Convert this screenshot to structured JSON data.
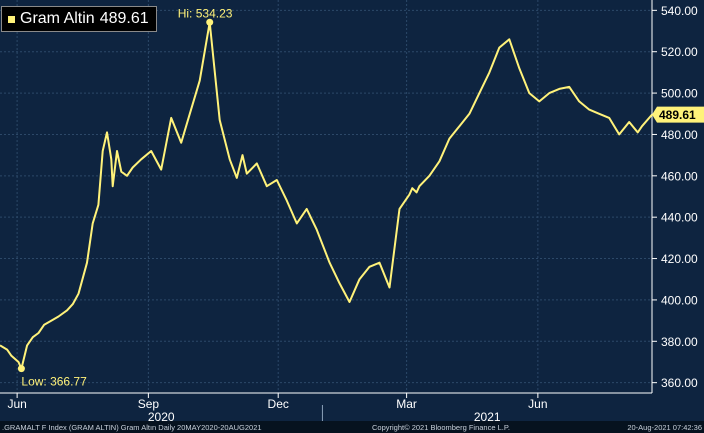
{
  "legend": {
    "name": "Gram Altin",
    "value": "489.61"
  },
  "footer": {
    "left": ".GRAMALT F Index (GRAM ALTIN) Gram Altın  Daily 20MAY2020-20AUG2021",
    "center": "Copyright© 2021 Bloomberg Finance L.P.",
    "right": "20-Aug-2021 07:42:36"
  },
  "colors": {
    "background": "#0e2440",
    "line": "#fff27a",
    "grid": "#2c4868",
    "text": "#ffffff",
    "price_tag_bg": "#fff27a"
  },
  "chart_data": {
    "type": "line",
    "series": [
      {
        "name": "Gram Altin",
        "x": [
          "2020-05-20",
          "2020-05-25",
          "2020-05-28",
          "2020-06-02",
          "2020-06-04",
          "2020-06-08",
          "2020-06-12",
          "2020-06-16",
          "2020-06-20",
          "2020-06-25",
          "2020-06-30",
          "2020-07-06",
          "2020-07-10",
          "2020-07-14",
          "2020-07-20",
          "2020-07-24",
          "2020-07-28",
          "2020-07-31",
          "2020-08-03",
          "2020-08-06",
          "2020-08-07",
          "2020-08-10",
          "2020-08-13",
          "2020-08-17",
          "2020-08-21",
          "2020-08-27",
          "2020-09-03",
          "2020-09-10",
          "2020-09-17",
          "2020-09-24",
          "2020-09-30",
          "2020-10-07",
          "2020-10-14",
          "2020-10-21",
          "2020-10-28",
          "2020-11-02",
          "2020-11-06",
          "2020-11-09",
          "2020-11-16",
          "2020-11-23",
          "2020-11-30",
          "2020-12-07",
          "2020-12-14",
          "2020-12-21",
          "2020-12-28",
          "2021-01-06",
          "2021-01-13",
          "2021-01-20",
          "2021-01-27",
          "2021-02-03",
          "2021-02-10",
          "2021-02-17",
          "2021-02-24",
          "2021-03-03",
          "2021-03-05",
          "2021-03-08",
          "2021-03-10",
          "2021-03-17",
          "2021-03-24",
          "2021-03-31",
          "2021-04-07",
          "2021-04-14",
          "2021-04-21",
          "2021-04-28",
          "2021-05-05",
          "2021-05-12",
          "2021-05-19",
          "2021-05-26",
          "2021-06-02",
          "2021-06-09",
          "2021-06-16",
          "2021-06-23",
          "2021-06-30",
          "2021-07-07",
          "2021-07-14",
          "2021-07-21",
          "2021-07-28",
          "2021-08-04",
          "2021-08-10",
          "2021-08-13",
          "2021-08-20"
        ],
        "values": [
          378,
          376,
          373,
          370,
          366.77,
          378,
          382,
          384,
          388,
          390,
          392,
          395,
          398,
          403,
          418,
          437,
          446,
          472,
          481,
          468,
          455,
          472,
          462,
          460,
          464,
          468,
          472,
          463,
          488,
          476,
          490,
          506,
          534.23,
          487,
          468,
          459,
          470,
          461,
          466,
          455,
          458,
          448,
          437,
          444,
          434,
          418,
          408,
          399,
          410,
          416,
          418,
          406,
          444,
          451,
          454,
          452,
          455,
          460,
          467,
          478,
          484,
          490,
          500,
          510,
          522,
          526,
          512,
          500,
          496,
          500,
          502,
          503,
          496,
          492,
          490,
          488,
          480,
          486,
          481,
          484,
          489.61
        ]
      }
    ],
    "x_ticks": [
      "Jun",
      "Sep",
      "Dec",
      "Mar",
      "Jun"
    ],
    "x_tick_dates": [
      "2020-06-01",
      "2020-09-01",
      "2020-12-01",
      "2021-03-01",
      "2021-06-01"
    ],
    "year_labels": [
      "2020",
      "2021"
    ],
    "y_ticks": [
      360,
      380,
      400,
      420,
      440,
      460,
      480,
      500,
      520,
      540
    ],
    "y_tick_labels": [
      "360.00",
      "380.00",
      "400.00",
      "420.00",
      "440.00",
      "460.00",
      "480.00",
      "500.00",
      "520.00",
      "540.00"
    ],
    "ylim": [
      355,
      545
    ],
    "xlim": [
      "2020-05-20",
      "2021-08-20"
    ],
    "annotations": [
      {
        "text": "Hi: 534.23",
        "x": "2020-10-14",
        "y": 534.23
      },
      {
        "text": "Low: 366.77",
        "x": "2020-06-04",
        "y": 366.77
      }
    ],
    "last_price_label": "489.61",
    "grid": true,
    "legend_position": "top-left"
  }
}
